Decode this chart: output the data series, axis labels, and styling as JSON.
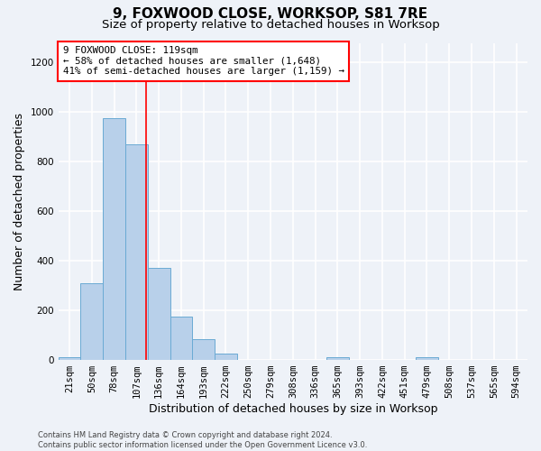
{
  "title": "9, FOXWOOD CLOSE, WORKSOP, S81 7RE",
  "subtitle": "Size of property relative to detached houses in Worksop",
  "xlabel": "Distribution of detached houses by size in Worksop",
  "ylabel": "Number of detached properties",
  "categories": [
    "21sqm",
    "50sqm",
    "78sqm",
    "107sqm",
    "136sqm",
    "164sqm",
    "193sqm",
    "222sqm",
    "250sqm",
    "279sqm",
    "308sqm",
    "336sqm",
    "365sqm",
    "393sqm",
    "422sqm",
    "451sqm",
    "479sqm",
    "508sqm",
    "537sqm",
    "565sqm",
    "594sqm"
  ],
  "values": [
    13,
    310,
    975,
    870,
    370,
    175,
    85,
    27,
    0,
    0,
    0,
    0,
    12,
    0,
    0,
    0,
    13,
    0,
    0,
    0,
    0
  ],
  "bar_color": "#b8d0ea",
  "bar_edgecolor": "#6aaad4",
  "annotation_text": "9 FOXWOOD CLOSE: 119sqm\n← 58% of detached houses are smaller (1,648)\n41% of semi-detached houses are larger (1,159) →",
  "annotation_box_facecolor": "white",
  "annotation_box_edgecolor": "red",
  "vline_color": "red",
  "ylim": [
    0,
    1280
  ],
  "yticks": [
    0,
    200,
    400,
    600,
    800,
    1000,
    1200
  ],
  "footer": "Contains HM Land Registry data © Crown copyright and database right 2024.\nContains public sector information licensed under the Open Government Licence v3.0.",
  "bg_color": "#eef2f8",
  "grid_color": "#ffffff",
  "title_fontsize": 11,
  "subtitle_fontsize": 9.5,
  "xlabel_fontsize": 9,
  "ylabel_fontsize": 9,
  "tick_fontsize": 7.5,
  "footer_fontsize": 6,
  "annotation_fontsize": 7.8
}
